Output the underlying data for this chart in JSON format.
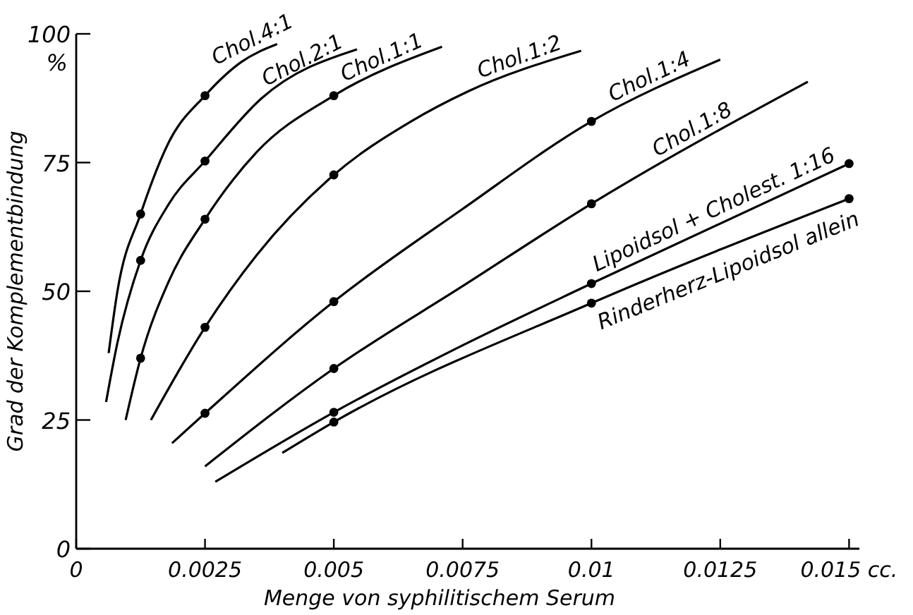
{
  "chart_data": {
    "type": "line",
    "xlabel": "Menge von syphilitischem Serum",
    "ylabel": "Grad der Komplementbindung",
    "annotations": [
      "%"
    ],
    "xlim": [
      0,
      0.0152
    ],
    "ylim": [
      0,
      100
    ],
    "xticks": [
      0,
      0.0025,
      0.005,
      0.0075,
      0.01,
      0.0125,
      {
        "value": 0.015,
        "label": "0.015 cc."
      }
    ],
    "yticks": [
      0,
      25,
      50,
      75,
      100
    ],
    "grid": false,
    "legend": false,
    "line_style": "solid",
    "series": [
      {
        "name": "Chol.4:1",
        "marker": "none",
        "color": "#000000",
        "x": [
          0.00063,
          0.0008,
          0.00125,
          0.0018,
          0.0025,
          0.0032,
          0.0039
        ],
        "values": [
          38,
          50,
          65,
          79,
          88,
          94.5,
          98
        ]
      },
      {
        "name": "Chol.2:1",
        "marker": "none",
        "color": "#000000",
        "x": [
          0.00058,
          0.0008,
          0.00125,
          0.0018,
          0.0025,
          0.0036,
          0.00545
        ],
        "values": [
          28.5,
          40,
          56,
          67,
          75.3,
          87.5,
          97
        ]
      },
      {
        "name": "Chol.1:1",
        "marker": "none",
        "color": "#000000",
        "x": [
          0.00096,
          0.00125,
          0.0018,
          0.0025,
          0.0035,
          0.005,
          0.0071
        ],
        "values": [
          25,
          37,
          52,
          64,
          77,
          88,
          97.5
        ]
      },
      {
        "name": "Chol.1:2",
        "marker": "none",
        "color": "#000000",
        "x": [
          0.00145,
          0.0025,
          0.0035,
          0.005,
          0.0065,
          0.0076,
          0.0098
        ],
        "values": [
          25,
          43,
          57,
          72.6,
          83,
          88.8,
          96.7
        ]
      },
      {
        "name": "Chol.1:4",
        "marker": "none",
        "color": "#000000",
        "x": [
          0.00186,
          0.0025,
          0.005,
          0.0075,
          0.01,
          0.0125
        ],
        "values": [
          20.5,
          26.3,
          48,
          66,
          83,
          95
        ]
      },
      {
        "name": "Chol.1:8",
        "marker": "none",
        "color": "#000000",
        "x": [
          0.0025,
          0.005,
          0.0075,
          0.01,
          0.0142
        ],
        "values": [
          16,
          35,
          51,
          67,
          90.7
        ]
      },
      {
        "name": "Lipoidsol + Cholest. 1:16",
        "marker": "none",
        "color": "#000000",
        "x": [
          0.0027,
          0.005,
          0.0075,
          0.01,
          0.015
        ],
        "values": [
          13,
          26.5,
          39.5,
          51.5,
          74.8
        ]
      },
      {
        "name": "Rinderherz-Lipoidsol allein",
        "marker": "none",
        "color": "#000000",
        "x": [
          0.004,
          0.005,
          0.01,
          0.015
        ],
        "values": [
          18.6,
          24.6,
          47.7,
          68
        ]
      },
      {
        "type": "scatter",
        "marker": "circle",
        "color": "#000000",
        "x": [
          0.00125,
          0.0025,
          0.00125,
          0.0025,
          0.00125,
          0.0025,
          0.005,
          0.0025,
          0.005,
          0.0025,
          0.005,
          0.01,
          0.005,
          0.01,
          0.005,
          0.01,
          0.015,
          0.005,
          0.01,
          0.015
        ],
        "values": [
          65,
          88,
          56,
          75.3,
          37,
          64,
          88,
          43,
          72.6,
          26.3,
          48,
          83,
          35,
          67,
          26.5,
          51.5,
          74.8,
          24.6,
          47.7,
          68
        ]
      }
    ]
  }
}
